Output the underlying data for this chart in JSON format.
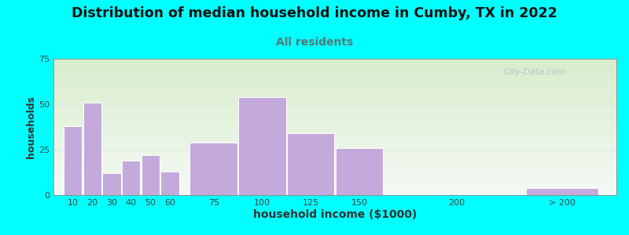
{
  "title": "Distribution of median household income in Cumby, TX in 2022",
  "subtitle": "All residents",
  "xlabel": "household income ($1000)",
  "ylabel": "households",
  "background_outer": "#00FFFF",
  "background_inner_top": "#F5FAF5",
  "background_inner_bottom": "#D8EDCC",
  "bar_color": "#C4AADC",
  "bar_edge_color": "#FFFFFF",
  "title_fontsize": 12.5,
  "subtitle_fontsize": 10,
  "subtitle_color": "#557777",
  "xlabel_fontsize": 10,
  "ylabel_fontsize": 9,
  "tick_color": "#444444",
  "categories": [
    "10",
    "20",
    "30",
    "40",
    "50",
    "60",
    "75",
    "100",
    "125",
    "150",
    "200",
    "> 200"
  ],
  "values": [
    38,
    51,
    12,
    19,
    22,
    13,
    29,
    54,
    34,
    26,
    0,
    4
  ],
  "bar_lefts": [
    10,
    20,
    30,
    40,
    50,
    60,
    75,
    100,
    125,
    150,
    200,
    248
  ],
  "bar_widths": [
    10,
    10,
    10,
    10,
    10,
    10,
    25,
    25,
    25,
    25,
    25,
    38
  ],
  "xlim": [
    5,
    295
  ],
  "ylim": [
    0,
    75
  ],
  "yticks": [
    0,
    25,
    50,
    75
  ],
  "watermark": "City-Data.com",
  "watermark_color": "#AABBCC",
  "grid_color": "#E0E8E0"
}
